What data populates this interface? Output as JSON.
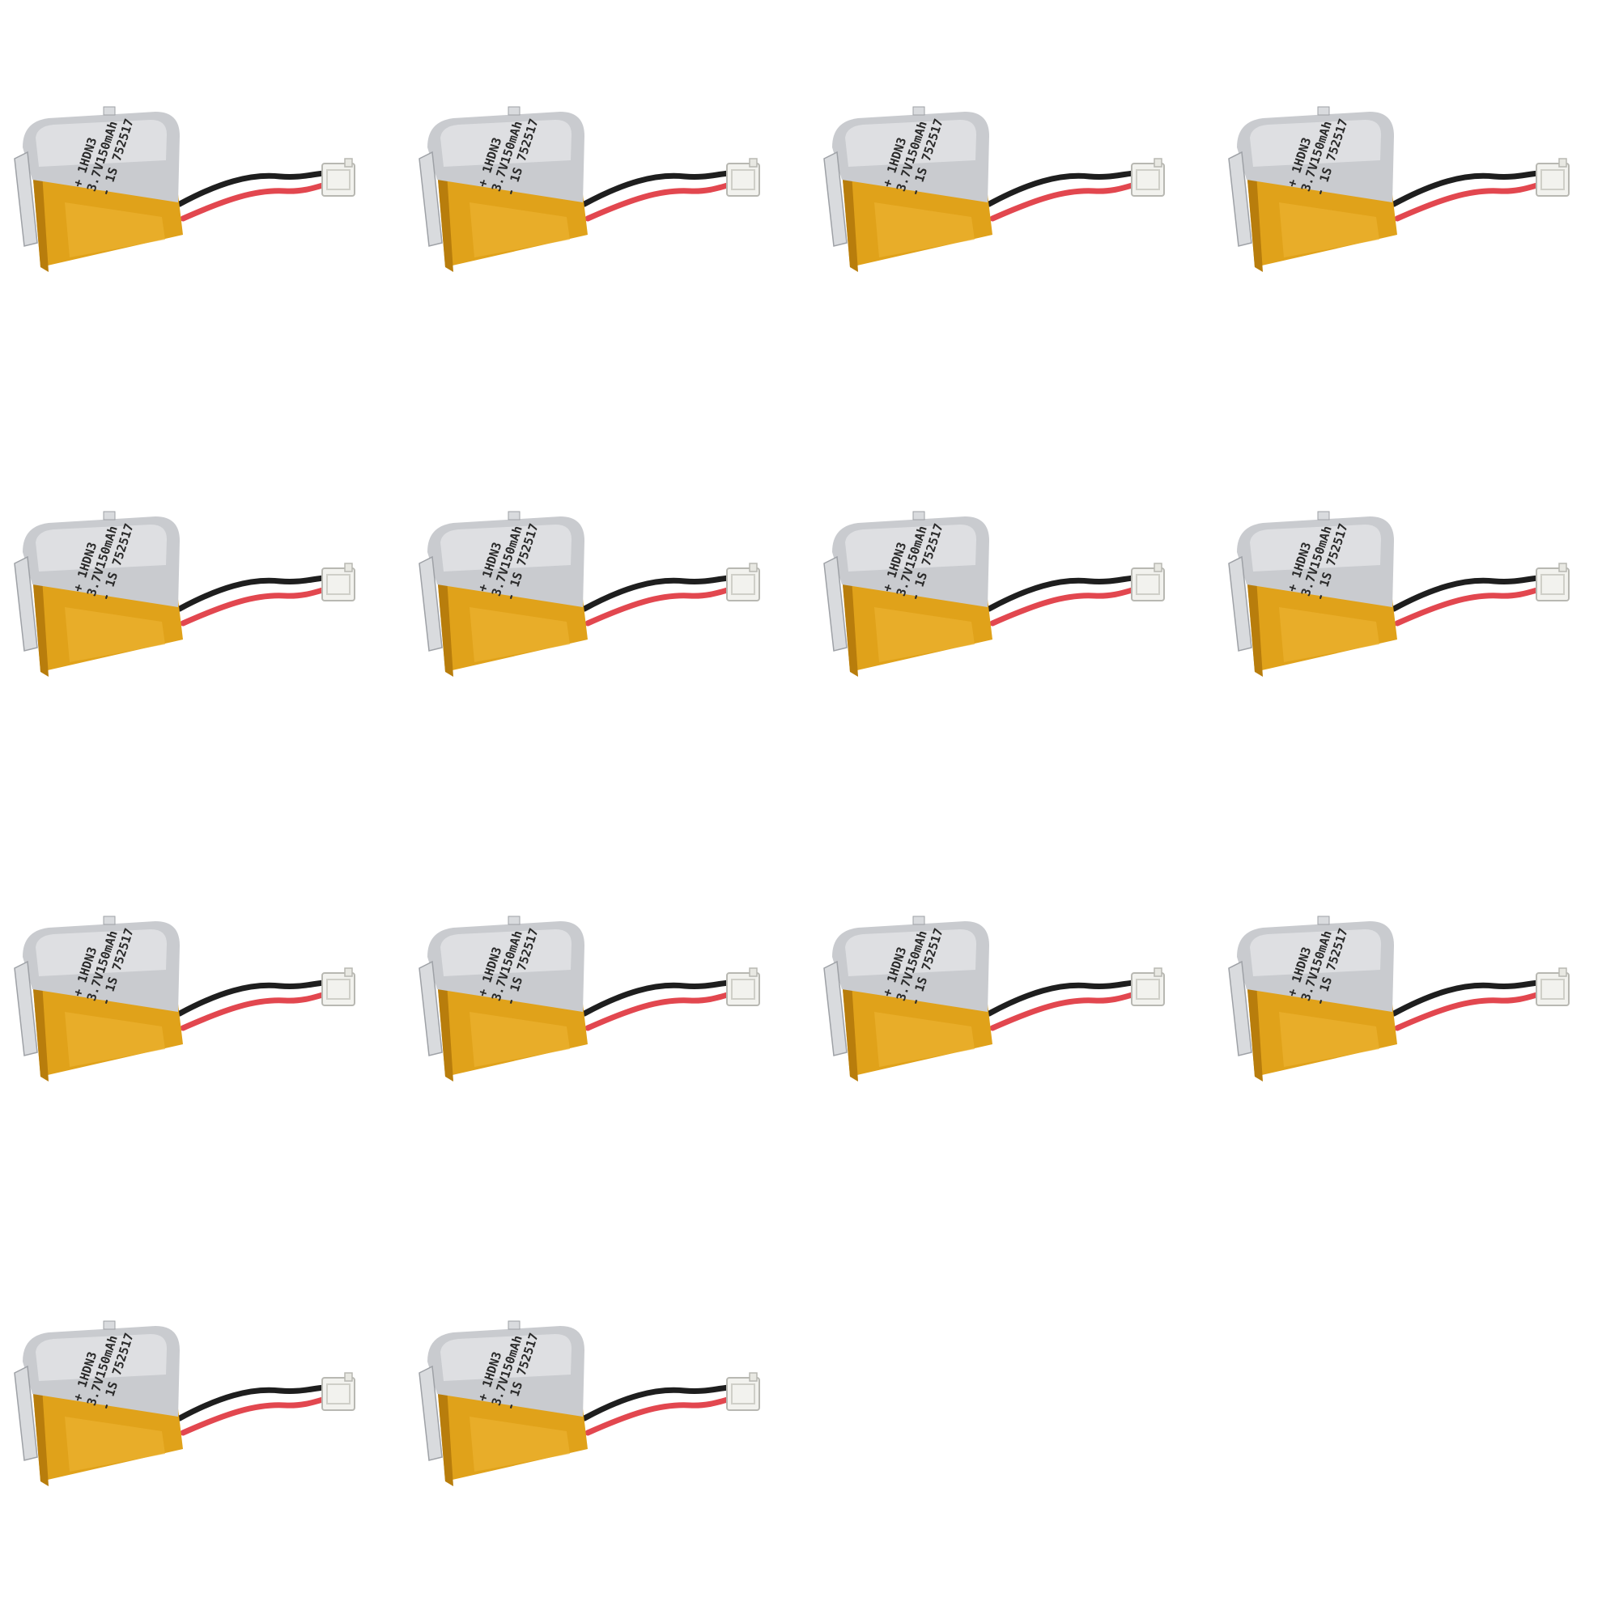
{
  "image": {
    "subject": "lipo-battery",
    "grid": {
      "columns": 4,
      "rows": 4
    },
    "count": 14,
    "colors": {
      "background": "#ffffff",
      "cell_wrap": "#c9cbcf",
      "cell_wrap_highlight": "#eef0f2",
      "cell_body": "#e0a21a",
      "cell_body_dark": "#b87d0c",
      "wire_red": "#e2474f",
      "wire_black": "#1e1e1e",
      "connector": "#f2f2ee"
    },
    "battery_label": {
      "line1": "+ 1HDN3",
      "line2": "3.7V150mAh",
      "line3": "- 1S 752517"
    }
  }
}
